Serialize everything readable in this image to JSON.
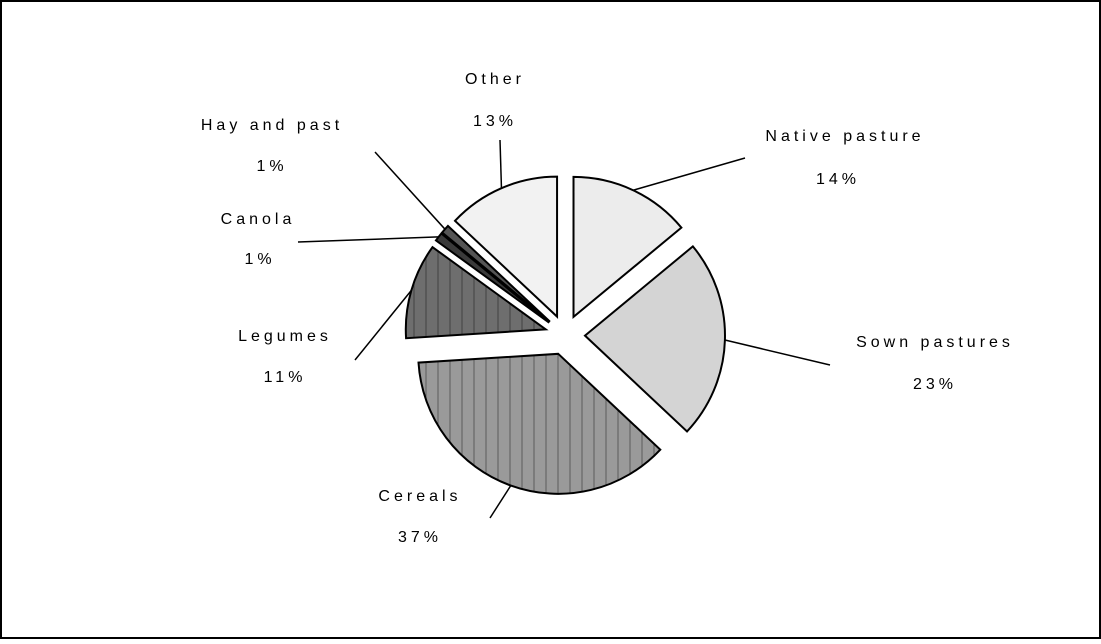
{
  "chart_data": {
    "type": "pie",
    "categories": [
      "Native pasture",
      "Sown pastures",
      "Cereals",
      "Legumes",
      "Canola",
      "Hay and past",
      "Other"
    ],
    "values": [
      14,
      23,
      37,
      11,
      1,
      1,
      13
    ],
    "value_labels": [
      "14%",
      "23%",
      "37%",
      "11%",
      "1%",
      "1%",
      "13%"
    ],
    "colors": [
      "#ececec",
      "#d4d4d4",
      "#9a9a9a",
      "#6e6e6e",
      "#3a3a3a",
      "#555555",
      "#f2f2f2"
    ]
  }
}
